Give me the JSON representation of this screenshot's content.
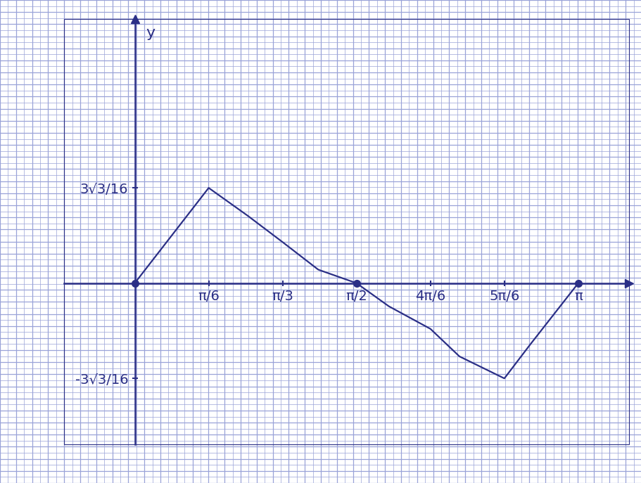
{
  "chart_data": {
    "type": "line",
    "color": "#2b2f86",
    "y_label": "y",
    "x": [
      0,
      0.5236,
      0.8,
      1.0472,
      1.3,
      1.5708,
      1.8,
      2.0944,
      2.3,
      2.618,
      2.8,
      3.1416
    ],
    "values": [
      0,
      0.325,
      0.23,
      0.14,
      0.046,
      0,
      -0.079,
      -0.156,
      -0.25,
      -0.325,
      -0.21,
      0
    ],
    "xlim": [
      -0.5,
      3.5
    ],
    "ylim": [
      -0.55,
      0.9
    ],
    "xticks": [
      {
        "value": 0.5236,
        "label": "π/6"
      },
      {
        "value": 1.0472,
        "label": "π/3"
      },
      {
        "value": 1.5708,
        "label": "π/2"
      },
      {
        "value": 2.0944,
        "label": "4π/6"
      },
      {
        "value": 2.618,
        "label": "5π/6"
      },
      {
        "value": 3.1416,
        "label": "π"
      }
    ],
    "yticks": [
      {
        "value": 0.3248,
        "label": "3√3/16"
      },
      {
        "value": -0.3248,
        "label": "-3√3/16"
      }
    ]
  }
}
